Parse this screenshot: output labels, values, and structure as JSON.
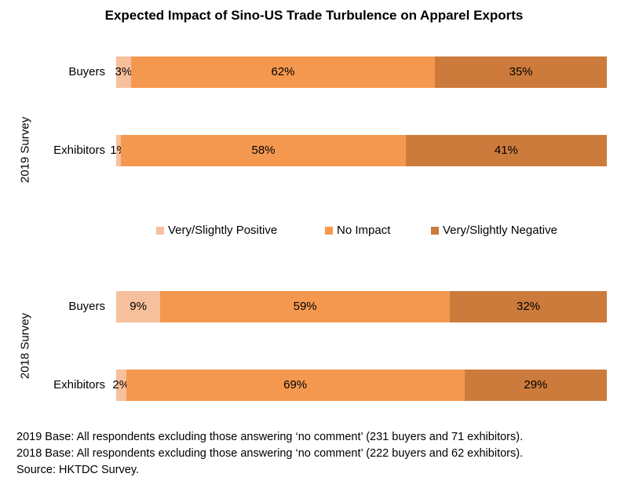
{
  "chart_data": {
    "type": "bar",
    "orientation": "horizontal",
    "stacked": true,
    "title": "Expected Impact of Sino-US Trade Turbulence on Apparel Exports",
    "value_format": "percent",
    "legend": {
      "placement": "center",
      "entries": [
        "Very/Slightly Positive",
        "No Impact",
        "Very/Slightly Negative"
      ]
    },
    "series_colors": [
      "#f7c09c",
      "#f5984f",
      "#cd7b3c"
    ],
    "groups": [
      {
        "label": "2019 Survey",
        "categories": [
          "Buyers",
          "Exhibitors"
        ],
        "series": [
          {
            "name": "Very/Slightly Positive",
            "values": [
              3,
              1
            ],
            "labels": [
              "3%",
              "1%"
            ]
          },
          {
            "name": "No Impact",
            "values": [
              62,
              58
            ],
            "labels": [
              "62%",
              "58%"
            ]
          },
          {
            "name": "Very/Slightly Negative",
            "values": [
              35,
              41
            ],
            "labels": [
              "35%",
              "41%"
            ]
          }
        ]
      },
      {
        "label": "2018 Survey",
        "categories": [
          "Buyers",
          "Exhibitors"
        ],
        "series": [
          {
            "name": "Very/Slightly Positive",
            "values": [
              9,
              2
            ],
            "labels": [
              "9%",
              "2%"
            ]
          },
          {
            "name": "No Impact",
            "values": [
              59,
              69
            ],
            "labels": [
              "59%",
              "69%"
            ]
          },
          {
            "name": "Very/Slightly Negative",
            "values": [
              32,
              29
            ],
            "labels": [
              "32%",
              "29%"
            ]
          }
        ]
      }
    ]
  },
  "notes": [
    "2019 Base: All respondents excluding those answering ‘no comment’ (231 buyers and 71 exhibitors).",
    "2018 Base: All respondents excluding those answering ‘no comment’ (222 buyers and 62 exhibitors).",
    "Source: HKTDC Survey."
  ]
}
